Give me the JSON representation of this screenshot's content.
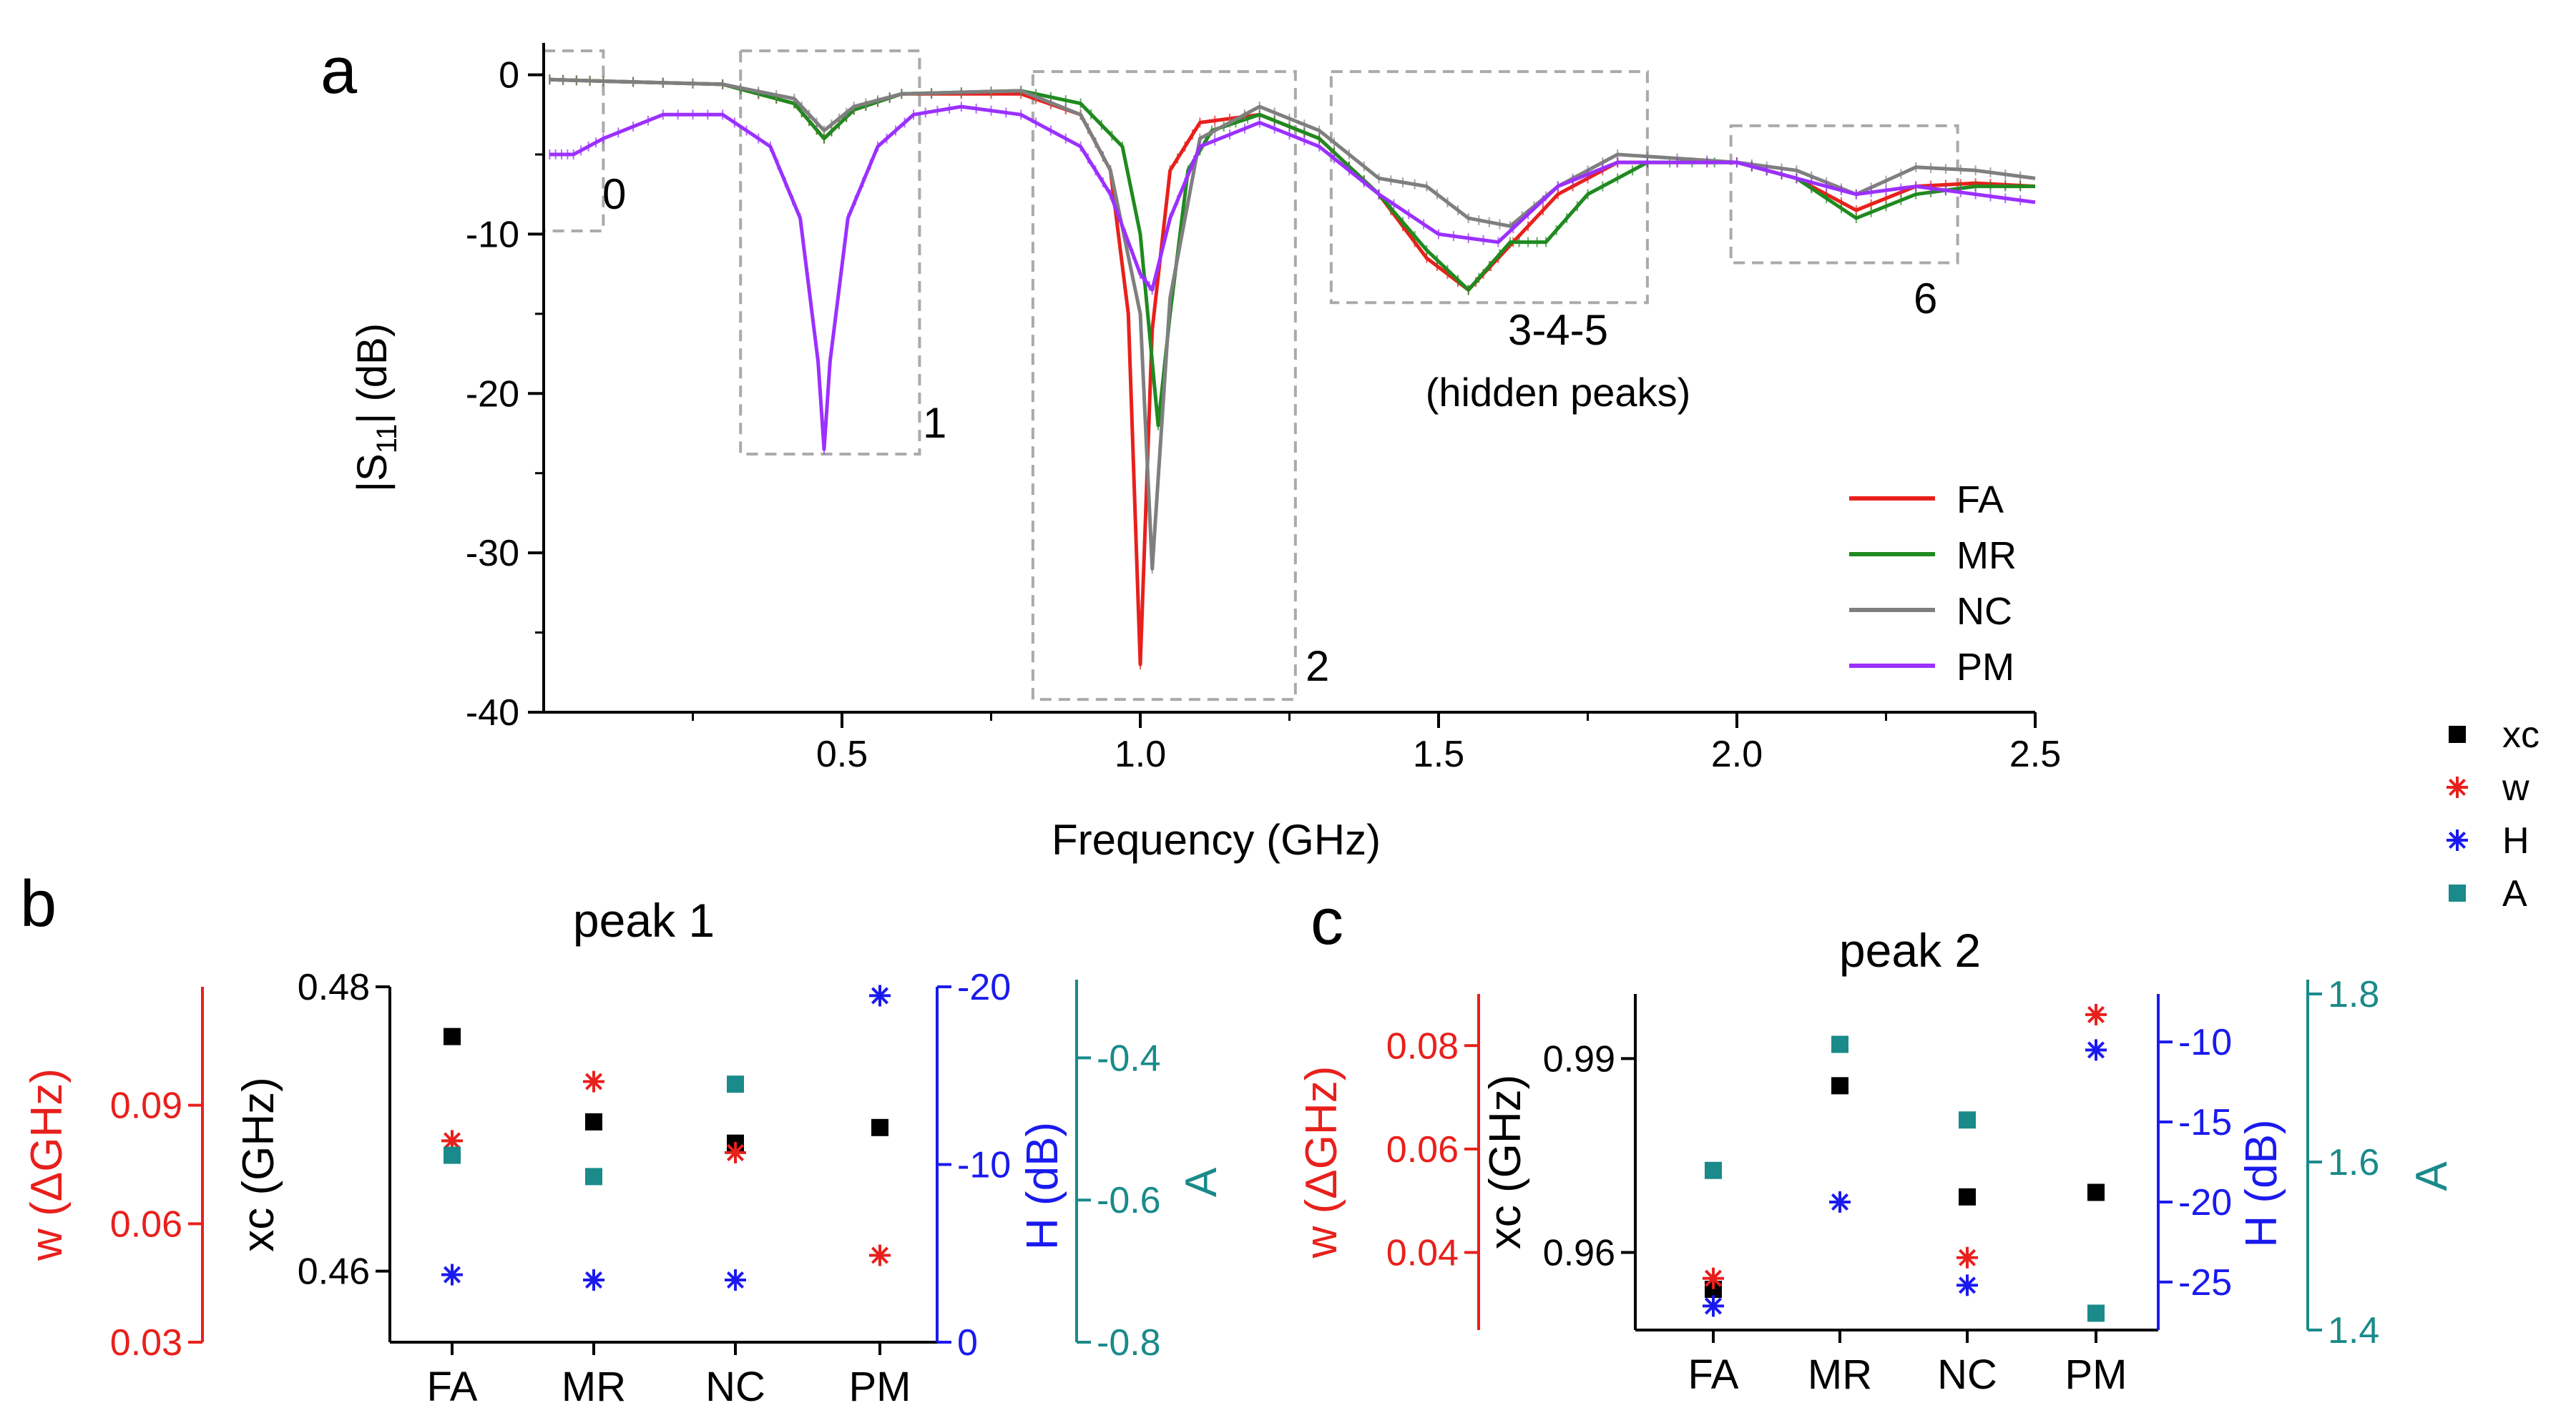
{
  "panel_labels": {
    "a": "a",
    "b": "b",
    "c": "c"
  },
  "colors": {
    "FA": "#e8201c",
    "MR": "#1f8a1f",
    "NC": "#7f7f7f",
    "PM": "#9b30ff",
    "xc": "#000000",
    "w": "#e8201c",
    "H": "#1a1aee",
    "A": "#1a8a8a",
    "box": "#aaaaaa",
    "axis": "#000000"
  },
  "chart_data": [
    {
      "id": "a",
      "type": "line",
      "title": "",
      "xlabel": "Frequency (GHz)",
      "ylabel_main": "|S",
      "ylabel_sub": "11",
      "ylabel_tail": "| (dB)",
      "xlim": [
        0,
        2.5
      ],
      "ylim": [
        -40,
        2
      ],
      "xticks": [
        0.5,
        1.0,
        1.5,
        2.0,
        2.5
      ],
      "xtick_labels": [
        "0.5",
        "1.0",
        "1.5",
        "2.0",
        "2.5"
      ],
      "yticks": [
        0,
        -10,
        -20,
        -30,
        -40
      ],
      "ytick_labels": [
        "0",
        "-10",
        "-20",
        "-30",
        "-40"
      ],
      "legend": [
        "FA",
        "MR",
        "NC",
        "PM"
      ],
      "legend_position": "bottom-right",
      "series": [
        {
          "name": "FA",
          "x": [
            0.01,
            0.1,
            0.3,
            0.42,
            0.47,
            0.52,
            0.6,
            0.8,
            0.9,
            0.95,
            0.98,
            1.0,
            1.02,
            1.05,
            1.1,
            1.2,
            1.3,
            1.4,
            1.48,
            1.55,
            1.6,
            1.7,
            1.8,
            2.0,
            2.1,
            2.2,
            2.3,
            2.4,
            2.5
          ],
          "y": [
            -0.3,
            -0.4,
            -0.6,
            -1.8,
            -4.0,
            -2.2,
            -1.2,
            -1.2,
            -2.5,
            -6,
            -15,
            -37,
            -16,
            -6,
            -3.0,
            -2.5,
            -4.0,
            -7.5,
            -11.5,
            -13.5,
            -11.5,
            -7.5,
            -5.5,
            -5.5,
            -6.5,
            -8.5,
            -7.0,
            -6.8,
            -7.0
          ]
        },
        {
          "name": "MR",
          "x": [
            0.01,
            0.1,
            0.3,
            0.42,
            0.47,
            0.52,
            0.6,
            0.8,
            0.9,
            0.97,
            1.0,
            1.03,
            1.05,
            1.08,
            1.12,
            1.2,
            1.3,
            1.4,
            1.48,
            1.55,
            1.62,
            1.68,
            1.75,
            1.85,
            2.0,
            2.1,
            2.2,
            2.3,
            2.4,
            2.5
          ],
          "y": [
            -0.3,
            -0.4,
            -0.6,
            -1.8,
            -4.0,
            -2.2,
            -1.2,
            -1.0,
            -1.8,
            -4.5,
            -10,
            -22,
            -15,
            -6,
            -3.5,
            -2.5,
            -4.0,
            -7.5,
            -11.0,
            -13.5,
            -10.5,
            -10.5,
            -7.5,
            -5.5,
            -5.5,
            -6.5,
            -9.0,
            -7.5,
            -7.0,
            -7.0
          ]
        },
        {
          "name": "NC",
          "x": [
            0.01,
            0.1,
            0.3,
            0.42,
            0.47,
            0.52,
            0.6,
            0.8,
            0.9,
            0.95,
            1.0,
            1.02,
            1.05,
            1.1,
            1.2,
            1.3,
            1.4,
            1.48,
            1.55,
            1.62,
            1.7,
            1.8,
            2.0,
            2.1,
            2.2,
            2.3,
            2.4,
            2.5
          ],
          "y": [
            -0.3,
            -0.4,
            -0.6,
            -1.5,
            -3.5,
            -2.0,
            -1.2,
            -1.0,
            -2.5,
            -6,
            -15,
            -31,
            -14,
            -4.0,
            -2.0,
            -3.5,
            -6.5,
            -7.0,
            -9.0,
            -9.5,
            -7.0,
            -5.0,
            -5.5,
            -6.0,
            -7.5,
            -5.8,
            -6.0,
            -6.5
          ]
        },
        {
          "name": "PM",
          "x": [
            0.01,
            0.05,
            0.1,
            0.2,
            0.3,
            0.38,
            0.43,
            0.46,
            0.47,
            0.48,
            0.51,
            0.56,
            0.62,
            0.7,
            0.8,
            0.9,
            0.95,
            1.0,
            1.02,
            1.05,
            1.1,
            1.2,
            1.3,
            1.4,
            1.5,
            1.6,
            1.7,
            1.8,
            2.0,
            2.1,
            2.2,
            2.3,
            2.4,
            2.5
          ],
          "y": [
            -5.0,
            -5.0,
            -4.0,
            -2.5,
            -2.5,
            -4.5,
            -9,
            -18,
            -23.5,
            -18,
            -9,
            -4.5,
            -2.5,
            -2.0,
            -2.5,
            -4.5,
            -7.5,
            -12.5,
            -13.5,
            -9.0,
            -4.5,
            -3.0,
            -4.5,
            -7.5,
            -10.0,
            -10.5,
            -7.0,
            -5.5,
            -5.5,
            -6.5,
            -7.5,
            -7.0,
            -7.5,
            -8.0
          ]
        }
      ],
      "boxes": [
        {
          "label": "0",
          "x0": 0.0,
          "x1": 0.1,
          "y0": 1.5,
          "y1": -9.8
        },
        {
          "label": "1",
          "x0": 0.33,
          "x1": 0.63,
          "y0": 1.5,
          "y1": -23.8
        },
        {
          "label": "2",
          "x0": 0.82,
          "x1": 1.26,
          "y0": 0.2,
          "y1": -39.2
        },
        {
          "label": "3-4-5",
          "x0": 1.32,
          "x1": 1.85,
          "y0": 0.2,
          "y1": -14.3
        },
        {
          "label": "6",
          "x0": 1.99,
          "x1": 2.37,
          "y0": -3.2,
          "y1": -11.8
        }
      ],
      "box_note": "(hidden peaks)"
    },
    {
      "id": "b",
      "type": "scatter",
      "title": "peak 1",
      "categories": [
        "FA",
        "MR",
        "NC",
        "PM"
      ],
      "axes": {
        "xc": {
          "label": "xc (GHz)",
          "range": [
            0.455,
            0.48
          ],
          "ticks": [
            0.48,
            0.46
          ],
          "tick_labels": [
            "0.48",
            "0.46"
          ]
        },
        "w": {
          "label": "w (ΔGHz)",
          "range": [
            0.03,
            0.12
          ],
          "ticks": [
            0.09,
            0.06,
            0.03
          ],
          "tick_labels": [
            "0.09",
            "0.06",
            "0.03"
          ]
        },
        "H": {
          "label": "H (dB)",
          "range": [
            0,
            -20
          ],
          "ticks": [
            -20,
            -10,
            0
          ],
          "tick_labels": [
            "-20",
            "-10",
            "0"
          ]
        },
        "A": {
          "label": "A",
          "range": [
            -0.8,
            -0.3
          ],
          "ticks": [
            -0.4,
            -0.6,
            -0.8
          ],
          "tick_labels": [
            "-0.4",
            "-0.6",
            "-0.8"
          ]
        }
      },
      "series": [
        {
          "name": "xc",
          "values": [
            0.4765,
            0.4705,
            0.469,
            0.4701
          ]
        },
        {
          "name": "w",
          "values": [
            0.081,
            0.096,
            0.078,
            0.052
          ]
        },
        {
          "name": "H",
          "values": [
            -3.8,
            -3.5,
            -3.5,
            -19.5
          ]
        },
        {
          "name": "A",
          "values": [
            -0.537,
            -0.567,
            -0.437,
            null
          ]
        }
      ]
    },
    {
      "id": "c",
      "type": "scatter",
      "title": "peak 2",
      "categories": [
        "FA",
        "MR",
        "NC",
        "PM"
      ],
      "axes": {
        "xc": {
          "label": "xc (GHz)",
          "range": [
            0.948,
            1.0
          ],
          "ticks": [
            0.99,
            0.96
          ],
          "tick_labels": [
            "0.99",
            "0.96"
          ]
        },
        "w": {
          "label": "w (ΔGHz)",
          "range": [
            0.025,
            0.09
          ],
          "ticks": [
            0.08,
            0.06,
            0.04
          ],
          "tick_labels": [
            "0.08",
            "0.06",
            "0.04"
          ]
        },
        "H": {
          "label": "H (dB)",
          "range": [
            -28,
            -7
          ],
          "ticks": [
            -10,
            -15,
            -20,
            -25
          ],
          "tick_labels": [
            "-10",
            "-15",
            "-20",
            "-25"
          ]
        },
        "A": {
          "label": "A",
          "range": [
            1.4,
            1.8
          ],
          "ticks": [
            1.8,
            1.6,
            1.4
          ],
          "tick_labels": [
            "1.8",
            "1.6",
            "1.4"
          ]
        }
      },
      "series": [
        {
          "name": "xc",
          "values": [
            0.9543,
            0.9858,
            0.9686,
            0.9693
          ]
        },
        {
          "name": "w",
          "values": [
            0.035,
            null,
            0.039,
            0.086
          ]
        },
        {
          "name": "H",
          "values": [
            -26.5,
            -20.0,
            -25.2,
            -10.5
          ]
        },
        {
          "name": "A",
          "values": [
            1.59,
            1.74,
            1.65,
            1.42
          ]
        }
      ]
    }
  ],
  "legend_markers": [
    {
      "name": "xc",
      "shape": "square"
    },
    {
      "name": "w",
      "shape": "star"
    },
    {
      "name": "H",
      "shape": "star"
    },
    {
      "name": "A",
      "shape": "square"
    }
  ]
}
